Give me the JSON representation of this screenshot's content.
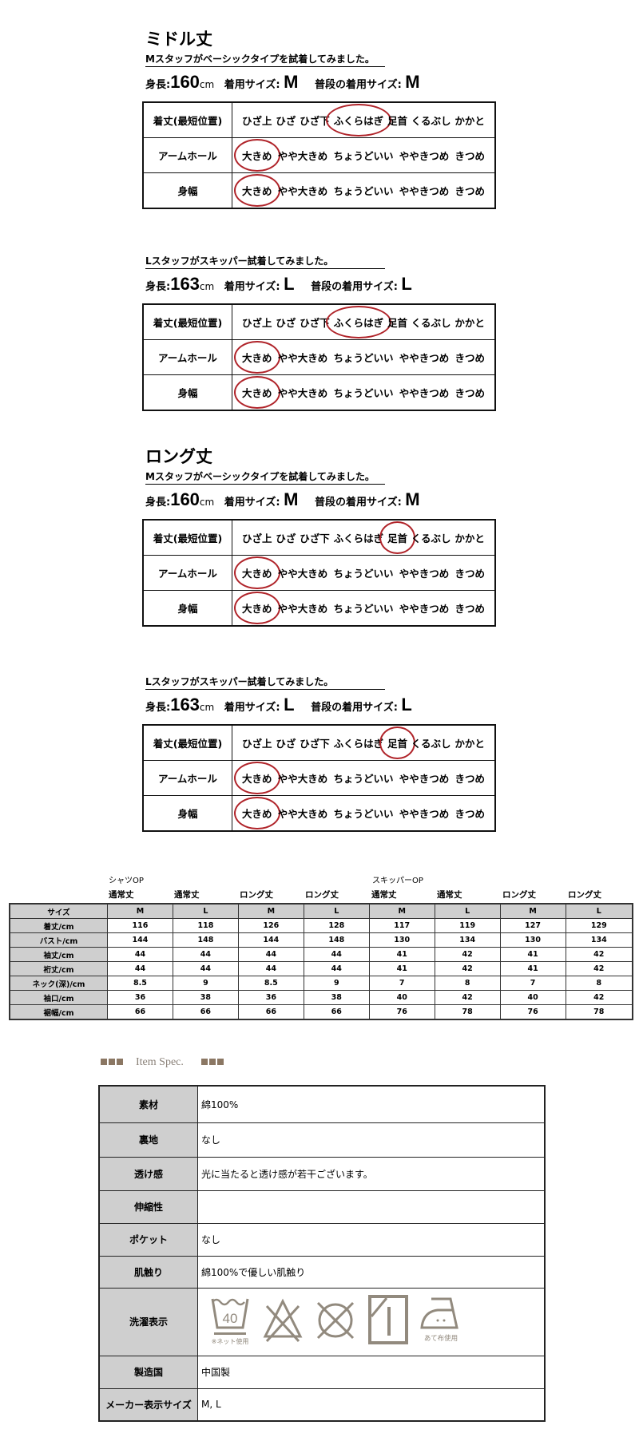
{
  "fit_sections": [
    {
      "title": "ミドル丈",
      "subtitle": "Mスタッフがベーシックタイプを試着してみました。",
      "height_label": "身長:",
      "height_value": "160",
      "height_unit": "cm",
      "worn_label": "着用サイズ:",
      "worn_size": "M",
      "usual_label": "普段の着用サイズ:",
      "usual_size": "M",
      "rows": [
        {
          "label": "着丈(最短位置)",
          "options": [
            "ひざ上",
            "ひざ",
            "ひざ下",
            "ふくらはぎ",
            "足首",
            "くるぶし",
            "かかと"
          ],
          "selected": 3
        },
        {
          "label": "アームホール",
          "options": [
            "大きめ",
            "やや大きめ",
            "ちょうどいい",
            "ややきつめ",
            "きつめ"
          ],
          "selected": 0
        },
        {
          "label": "身幅",
          "options": [
            "大きめ",
            "やや大きめ",
            "ちょうどいい",
            "ややきつめ",
            "きつめ"
          ],
          "selected": 0
        }
      ]
    },
    {
      "title": "",
      "subtitle": "Lスタッフがスキッパー試着してみました。",
      "height_label": "身長:",
      "height_value": "163",
      "height_unit": "cm",
      "worn_label": "着用サイズ:",
      "worn_size": "L",
      "usual_label": "普段の着用サイズ:",
      "usual_size": "L",
      "rows": [
        {
          "label": "着丈(最短位置)",
          "options": [
            "ひざ上",
            "ひざ",
            "ひざ下",
            "ふくらはぎ",
            "足首",
            "くるぶし",
            "かかと"
          ],
          "selected": 3
        },
        {
          "label": "アームホール",
          "options": [
            "大きめ",
            "やや大きめ",
            "ちょうどいい",
            "ややきつめ",
            "きつめ"
          ],
          "selected": 0
        },
        {
          "label": "身幅",
          "options": [
            "大きめ",
            "やや大きめ",
            "ちょうどいい",
            "ややきつめ",
            "きつめ"
          ],
          "selected": 0
        }
      ]
    },
    {
      "title": "ロング丈",
      "subtitle": "Mスタッフがベーシックタイプを試着してみました。",
      "height_label": "身長:",
      "height_value": "160",
      "height_unit": "cm",
      "worn_label": "着用サイズ:",
      "worn_size": "M",
      "usual_label": "普段の着用サイズ:",
      "usual_size": "M",
      "rows": [
        {
          "label": "着丈(最短位置)",
          "options": [
            "ひざ上",
            "ひざ",
            "ひざ下",
            "ふくらはぎ",
            "足首",
            "くるぶし",
            "かかと"
          ],
          "selected": 4
        },
        {
          "label": "アームホール",
          "options": [
            "大きめ",
            "やや大きめ",
            "ちょうどいい",
            "ややきつめ",
            "きつめ"
          ],
          "selected": 0
        },
        {
          "label": "身幅",
          "options": [
            "大きめ",
            "やや大きめ",
            "ちょうどいい",
            "ややきつめ",
            "きつめ"
          ],
          "selected": 0
        }
      ]
    },
    {
      "title": "",
      "subtitle": "Lスタッフがスキッパー試着してみました。",
      "height_label": "身長:",
      "height_value": "163",
      "height_unit": "cm",
      "worn_label": "着用サイズ:",
      "worn_size": "L",
      "usual_label": "普段の着用サイズ:",
      "usual_size": "L",
      "rows": [
        {
          "label": "着丈(最短位置)",
          "options": [
            "ひざ上",
            "ひざ",
            "ひざ下",
            "ふくらはぎ",
            "足首",
            "くるぶし",
            "かかと"
          ],
          "selected": 4
        },
        {
          "label": "アームホール",
          "options": [
            "大きめ",
            "やや大きめ",
            "ちょうどいい",
            "ややきつめ",
            "きつめ"
          ],
          "selected": 0
        },
        {
          "label": "身幅",
          "options": [
            "大きめ",
            "やや大きめ",
            "ちょうどいい",
            "ややきつめ",
            "きつめ"
          ],
          "selected": 0
        }
      ]
    }
  ],
  "size_table": {
    "groups": [
      "シャツOP",
      "スキッパーOP"
    ],
    "sublabels": [
      "通常丈",
      "通常丈",
      "ロング丈",
      "ロング丈",
      "通常丈",
      "通常丈",
      "ロング丈",
      "ロング丈"
    ],
    "header": {
      "label": "サイズ",
      "values": [
        "M",
        "L",
        "M",
        "L",
        "M",
        "L",
        "M",
        "L"
      ]
    },
    "rows": [
      {
        "label": "着丈/cm",
        "values": [
          "116",
          "118",
          "126",
          "128",
          "117",
          "119",
          "127",
          "129"
        ]
      },
      {
        "label": "バスト/cm",
        "values": [
          "144",
          "148",
          "144",
          "148",
          "130",
          "134",
          "130",
          "134"
        ]
      },
      {
        "label": "袖丈/cm",
        "values": [
          "44",
          "44",
          "44",
          "44",
          "41",
          "42",
          "41",
          "42"
        ]
      },
      {
        "label": "裄丈/cm",
        "values": [
          "44",
          "44",
          "44",
          "44",
          "41",
          "42",
          "41",
          "42"
        ]
      },
      {
        "label": "ネック(深)/cm",
        "values": [
          "8.5",
          "9",
          "8.5",
          "9",
          "7",
          "8",
          "7",
          "8"
        ]
      },
      {
        "label": "袖口/cm",
        "values": [
          "36",
          "38",
          "36",
          "38",
          "40",
          "42",
          "40",
          "42"
        ]
      },
      {
        "label": "裾幅/cm",
        "values": [
          "66",
          "66",
          "66",
          "66",
          "76",
          "78",
          "76",
          "78"
        ]
      }
    ]
  },
  "item_spec": {
    "heading": "Item Spec.",
    "accent_color": "#8b7763",
    "rows": [
      {
        "label": "素材",
        "value": "綿100%"
      },
      {
        "label": "裏地",
        "value": "なし"
      },
      {
        "label": "透け感",
        "value": "光に当たると透け感が若干ございます。"
      },
      {
        "label": "伸縮性",
        "value": ""
      },
      {
        "label": "ポケット",
        "value": "なし"
      },
      {
        "label": "肌触り",
        "value": "綿100%で優しい肌触り"
      },
      {
        "label": "洗濯表示",
        "care_icons": [
          "wash-40-net-icon",
          "no-bleach-icon",
          "no-tumble-dry-icon",
          "line-dry-shade-icon",
          "iron-low-cloth-icon"
        ],
        "wash_temp": "40",
        "wash_note": "※ネット使用",
        "iron_note": "あて布使用"
      },
      {
        "label": "製造国",
        "value": "中国製"
      },
      {
        "label": "メーカー表示サイズ",
        "value": "M, L"
      }
    ]
  },
  "colors": {
    "circle": "#b0242a",
    "care_icon": "#928a7e",
    "header_bg": "#cfcfcf"
  }
}
